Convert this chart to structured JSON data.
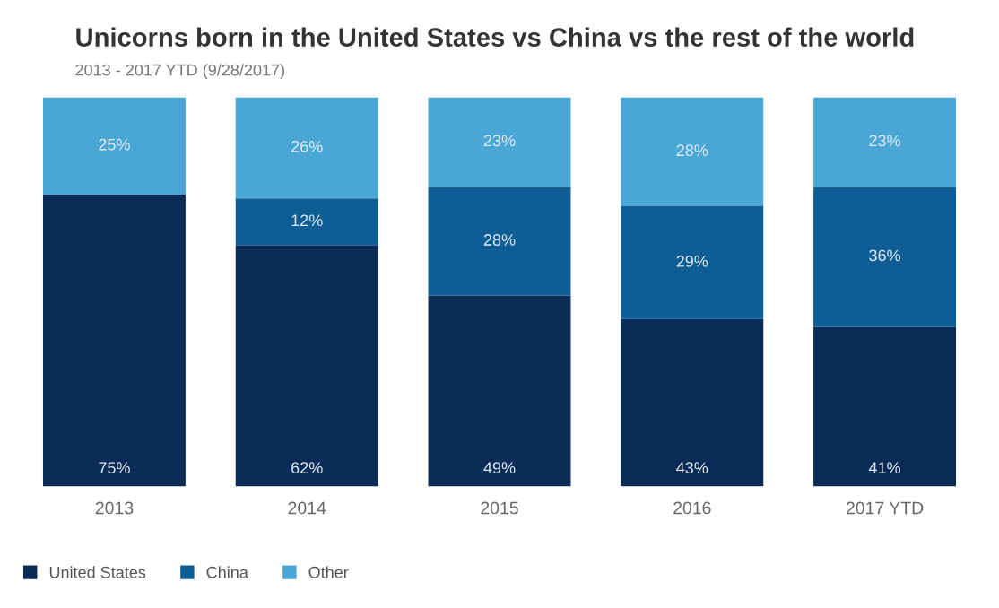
{
  "chart_data": {
    "type": "bar",
    "stacked": true,
    "title": "Unicorns born in the United States vs China vs the rest of the world",
    "subtitle": "2013 - 2017 YTD (9/28/2017)",
    "categories": [
      "2013",
      "2014",
      "2015",
      "2016",
      "2017 YTD"
    ],
    "series": [
      {
        "name": "United States",
        "color": "#0b2b57",
        "values": [
          75,
          62,
          49,
          43,
          41
        ],
        "value_labels": [
          "75%",
          "62%",
          "49%",
          "43%",
          "41%"
        ]
      },
      {
        "name": "China",
        "color": "#0e5d94",
        "values": [
          0,
          12,
          28,
          29,
          36
        ],
        "value_labels": [
          null,
          "12%",
          "28%",
          "29%",
          "36%"
        ]
      },
      {
        "name": "Other",
        "color": "#4aa6d4",
        "values": [
          25,
          26,
          23,
          28,
          23
        ],
        "value_labels": [
          "25%",
          "26%",
          "23%",
          "28%",
          "23%"
        ]
      }
    ],
    "legend": "bottom left",
    "grid": false
  }
}
